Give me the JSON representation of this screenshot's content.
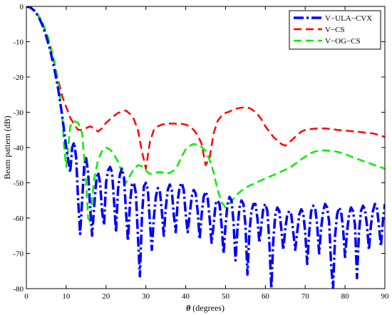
{
  "chart_data": {
    "type": "line",
    "xlabel": "θ (degrees)",
    "xlabel_symbol": "θ",
    "xlabel_rest": " (degrees)",
    "ylabel": "Beam pattern (dB)",
    "xlim": [
      0,
      90
    ],
    "ylim": [
      -80,
      0
    ],
    "xticks": [
      0,
      10,
      20,
      30,
      40,
      50,
      60,
      70,
      80,
      90
    ],
    "yticks": [
      0,
      -10,
      -20,
      -30,
      -40,
      -50,
      -60,
      -70,
      -80
    ],
    "grid": false,
    "legend_position": "top-right",
    "series": [
      {
        "name": "V−ULA−CVX",
        "color": "#0000ff",
        "style": "dashdot",
        "width": 3.5,
        "x": [
          0,
          1,
          2,
          3,
          4,
          5,
          6,
          7,
          8,
          9,
          10,
          11,
          11.5,
          12,
          12.5,
          13,
          13.5,
          14,
          14.5,
          15,
          15.5,
          16,
          16.5,
          17,
          17.5,
          18,
          18.5,
          19,
          19.5,
          20,
          20.5,
          21,
          21.5,
          22,
          22.5,
          23,
          23.5,
          24,
          24.5,
          25,
          25.5,
          26,
          26.5,
          27,
          27.5,
          28,
          28.5,
          29,
          29.5,
          30,
          30.5,
          31,
          31.5,
          32,
          32.5,
          33,
          33.5,
          34,
          34.5,
          35,
          35.5,
          36,
          36.5,
          37,
          37.5,
          38,
          38.5,
          39,
          39.5,
          40,
          40.5,
          41,
          41.5,
          42,
          42.5,
          43,
          43.5,
          44,
          44.5,
          45,
          45.5,
          46,
          46.5,
          47,
          47.5,
          48,
          48.5,
          49,
          49.5,
          50,
          50.5,
          51,
          51.5,
          52,
          52.5,
          53,
          53.5,
          54,
          54.5,
          55,
          55.5,
          56,
          56.5,
          57,
          57.5,
          58,
          58.5,
          59,
          59.5,
          60,
          60.5,
          61,
          61.5,
          62,
          62.5,
          63,
          63.5,
          64,
          64.5,
          65,
          65.5,
          66,
          66.5,
          67,
          67.5,
          68,
          68.5,
          69,
          69.5,
          70,
          70.5,
          71,
          71.5,
          72,
          72.5,
          73,
          73.5,
          74,
          74.5,
          75,
          75.5,
          76,
          76.5,
          77,
          77.5,
          78,
          78.5,
          79,
          79.5,
          80,
          80.5,
          81,
          81.5,
          82,
          82.5,
          83,
          83.5,
          84,
          84.5,
          85,
          85.5,
          86,
          86.5,
          87,
          87.5,
          88,
          88.5,
          89,
          89.5,
          90
        ],
        "y": [
          0,
          -0.3,
          -1.2,
          -2.8,
          -5.2,
          -8.5,
          -12.5,
          -17.5,
          -23.5,
          -31,
          -40,
          -47,
          -40,
          -38.5,
          -43,
          -55,
          -64.5,
          -55,
          -45.5,
          -43,
          -47,
          -57,
          -65,
          -57,
          -50,
          -47,
          -50,
          -58,
          -62,
          -50,
          -46.5,
          -45.5,
          -47,
          -55,
          -64,
          -52,
          -47.5,
          -46,
          -48.5,
          -58,
          -66.5,
          -56,
          -50.5,
          -50,
          -53,
          -65,
          -76.5,
          -60,
          -51,
          -50,
          -52,
          -61,
          -69,
          -60,
          -54,
          -51.5,
          -52,
          -58,
          -65,
          -57,
          -52,
          -50.5,
          -52,
          -59,
          -64,
          -55,
          -51,
          -50,
          -52,
          -59,
          -64,
          -59,
          -54,
          -52,
          -53,
          -58,
          -66,
          -59,
          -54,
          -52.5,
          -54,
          -60,
          -67,
          -62,
          -56,
          -55,
          -56,
          -62,
          -70,
          -62,
          -56,
          -54,
          -55,
          -61,
          -72,
          -63,
          -57,
          -55,
          -56,
          -62,
          -76,
          -64,
          -58,
          -56,
          -56,
          -60,
          -67,
          -62,
          -57,
          -56,
          -58,
          -67,
          -80,
          -66,
          -59,
          -57,
          -58,
          -63,
          -69,
          -63,
          -59,
          -58,
          -59,
          -64,
          -69,
          -64,
          -59,
          -57.5,
          -58.5,
          -64,
          -73,
          -64,
          -58,
          -56.5,
          -57,
          -62,
          -70,
          -63,
          -58,
          -56,
          -57,
          -61,
          -73,
          -80,
          -65,
          -59,
          -57,
          -58,
          -63,
          -71,
          -64,
          -59,
          -57,
          -58,
          -62,
          -77,
          -64,
          -58,
          -56.5,
          -57.5,
          -62,
          -69,
          -62,
          -58,
          -56,
          -57,
          -62,
          -68,
          -61,
          -56
        ]
      },
      {
        "name": "V−CS",
        "color": "#ff0000",
        "style": "dashed",
        "width": 2.5,
        "x": [
          0,
          1,
          2,
          3,
          4,
          5,
          6,
          7,
          8,
          9,
          10,
          11,
          12,
          13,
          14,
          15,
          16,
          17,
          18,
          19,
          20,
          21,
          22,
          23,
          24,
          25,
          26,
          27,
          28,
          29,
          30,
          31,
          32,
          33,
          34,
          35,
          36,
          37,
          38,
          39,
          40,
          41,
          42,
          43,
          44,
          45,
          46,
          47,
          48,
          49,
          50,
          51,
          52,
          53,
          54,
          55,
          56,
          57,
          58,
          59,
          60,
          61,
          62,
          63,
          64,
          65,
          66,
          67,
          68,
          69,
          70,
          71,
          72,
          73,
          74,
          75,
          76,
          77,
          78,
          79,
          80,
          81,
          82,
          83,
          84,
          85,
          86,
          87,
          88,
          89,
          90
        ],
        "y": [
          0,
          -0.3,
          -1.2,
          -2.6,
          -4.8,
          -7.8,
          -11.5,
          -16,
          -21,
          -25.5,
          -28.5,
          -31.5,
          -33.5,
          -35,
          -35,
          -34.5,
          -34,
          -34.5,
          -35.5,
          -34.5,
          -33,
          -32,
          -31,
          -30.2,
          -29.8,
          -29.5,
          -30.5,
          -32,
          -35,
          -41,
          -46,
          -38.5,
          -35,
          -34,
          -33.5,
          -33.3,
          -33.2,
          -33.2,
          -33.3,
          -33.3,
          -33.5,
          -34,
          -35,
          -36.5,
          -39,
          -45,
          -43,
          -36,
          -32.5,
          -31,
          -30.2,
          -29.8,
          -29.2,
          -28.9,
          -28.7,
          -28.6,
          -28.8,
          -29.5,
          -30.5,
          -32,
          -34,
          -35.5,
          -37,
          -38,
          -39,
          -39.5,
          -38.5,
          -37.5,
          -36.5,
          -35.5,
          -35,
          -34.8,
          -34.7,
          -34.6,
          -34.6,
          -34.6,
          -34.7,
          -34.8,
          -35,
          -35.1,
          -35.2,
          -35.3,
          -35.4,
          -35.5,
          -35.6,
          -35.8,
          -35.9,
          -36,
          -36.3,
          -36.6,
          -37
        ]
      },
      {
        "name": "V−OG−CS",
        "color": "#00ee00",
        "style": "dashed",
        "width": 2.5,
        "x": [
          0,
          1,
          2,
          3,
          4,
          5,
          6,
          7,
          8,
          9,
          9.5,
          10,
          10.5,
          11,
          12,
          13,
          14,
          15,
          15.5,
          16,
          16.5,
          17,
          18,
          19,
          20,
          21,
          22,
          23,
          24,
          25,
          26,
          27,
          28,
          29,
          30,
          31,
          32,
          33,
          34,
          35,
          36,
          37,
          38,
          39,
          40,
          41,
          42,
          43,
          44,
          45,
          46,
          47,
          48,
          49,
          50,
          51,
          52,
          53,
          54,
          55,
          56,
          57,
          58,
          59,
          60,
          61,
          62,
          63,
          64,
          65,
          66,
          67,
          68,
          69,
          70,
          71,
          72,
          73,
          74,
          75,
          76,
          77,
          78,
          79,
          80,
          81,
          82,
          83,
          84,
          85,
          86,
          87,
          88,
          89,
          90
        ],
        "y": [
          0,
          -0.3,
          -1.1,
          -2.5,
          -4.5,
          -7.2,
          -10.8,
          -15.5,
          -21.5,
          -31,
          -40,
          -45.5,
          -40,
          -34,
          -32.5,
          -33,
          -36,
          -50,
          -60,
          -61,
          -55,
          -49,
          -43.5,
          -41,
          -40,
          -40.5,
          -42,
          -44,
          -47,
          -50,
          -48,
          -46,
          -45,
          -45.3,
          -46.5,
          -47.5,
          -47.2,
          -47,
          -47,
          -47.5,
          -47.2,
          -46.5,
          -45,
          -42.5,
          -40.5,
          -39.5,
          -39,
          -39.2,
          -39.8,
          -41,
          -43.5,
          -47,
          -52,
          -55.5,
          -57,
          -56,
          -54.5,
          -53.2,
          -52.2,
          -51.4,
          -50.8,
          -50.3,
          -49.8,
          -49.3,
          -48.8,
          -48.3,
          -47.8,
          -47.3,
          -46.8,
          -46.3,
          -45.8,
          -45,
          -44.2,
          -43.4,
          -42.6,
          -41.8,
          -41.3,
          -41,
          -40.8,
          -40.8,
          -40.9,
          -41,
          -41.2,
          -41.5,
          -41.9,
          -42.3,
          -42.8,
          -43.2,
          -43.6,
          -44,
          -44.4,
          -44.8,
          -45.2,
          -45.6,
          -46
        ]
      }
    ]
  }
}
